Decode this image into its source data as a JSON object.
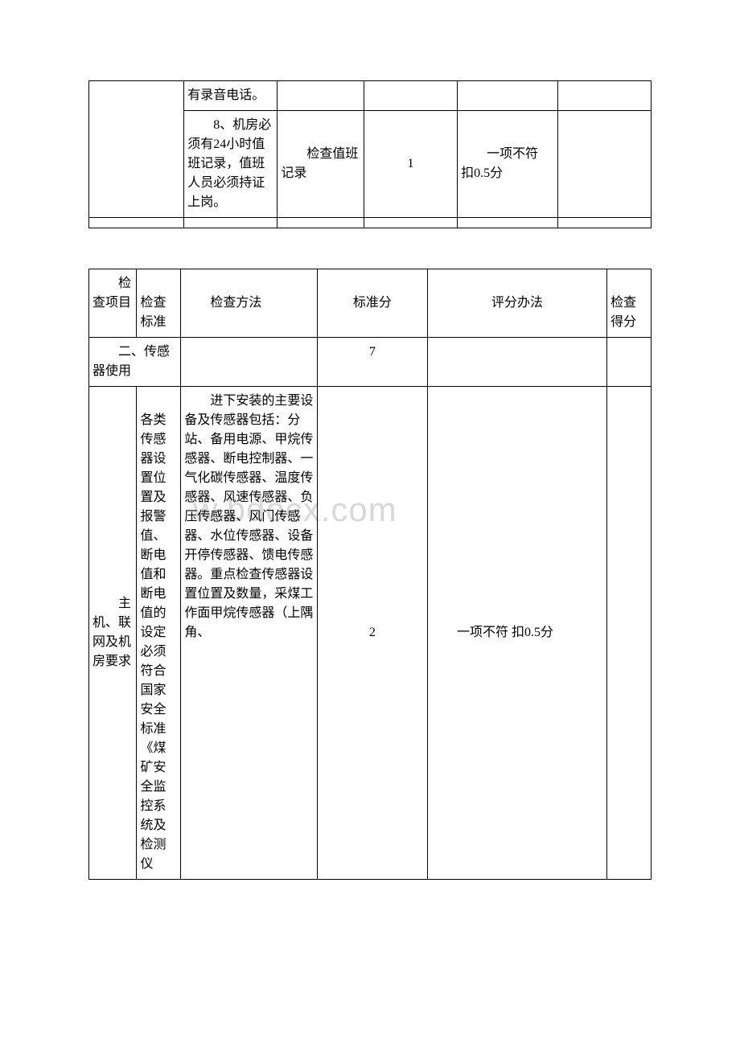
{
  "watermark": "w.bdocx.com",
  "table1": {
    "row1": {
      "col2": "有录音电话。",
      "col3": "",
      "col4": "",
      "col5": "",
      "col6": ""
    },
    "row2": {
      "col1": "",
      "col2": "　　8、机房必须有24小时值班记录，值班人员必须持证上岗。",
      "col3": "　　检查值班记录",
      "col4": "1",
      "col5": "　　一项不符 扣0.5分",
      "col6": ""
    },
    "row3": {
      "col1": "",
      "col2": "",
      "col3": "",
      "col4": "",
      "col5": "",
      "col6": ""
    }
  },
  "table2": {
    "header": {
      "col1": "　　检查项目",
      "col2": "　　检查标准",
      "col3": "　　检查方法",
      "col4": "标准分",
      "col5": "评分办法",
      "col6": "　　检查得分"
    },
    "row1": {
      "col1": "　　二、传感器使用",
      "col3": "",
      "col4": "7",
      "col5": "",
      "col6": ""
    },
    "row2": {
      "col1": "　　主机、联网及机房要求",
      "col2": "　　各类传感器设置位置及报警值、断电值和断电值的设定必须符合国家安全标准《煤矿安全监控系统及检测仪",
      "col3": "　　进下安装的主要设备及传感器包括：分站、备用电源、甲烷传感器、断电控制器、一气化碳传感器、温度传感器、风速传感器、负压传感器、风门传感器、水位传感器、设备开停传感器、馈电传感器。重点检查传感器设置位置及数量，采煤工作面甲烷传感器（上隅角、",
      "col4": "2",
      "col5": "　　一项不符 扣0.5分",
      "col6": ""
    }
  }
}
